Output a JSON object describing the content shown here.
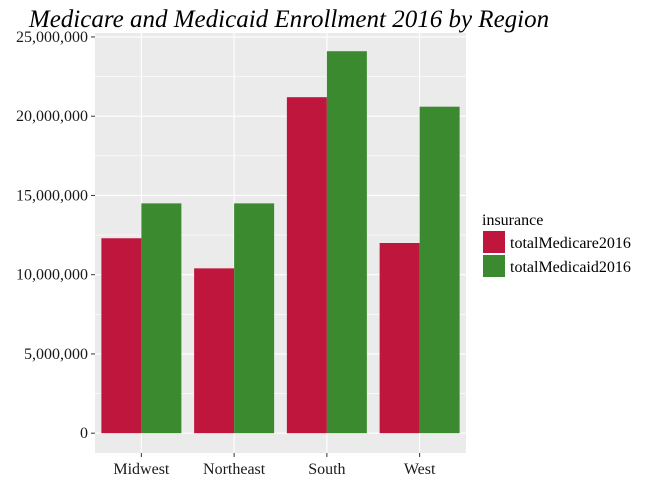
{
  "chart_data": {
    "type": "bar",
    "title": "Medicare and Medicaid Enrollment 2016 by Region",
    "xlabel": "",
    "ylabel": "",
    "categories": [
      "Midwest",
      "Northeast",
      "South",
      "West"
    ],
    "series": [
      {
        "name": "totalMedicare2016",
        "color": "#BE163D",
        "values": [
          12300000,
          10400000,
          21200000,
          12000000
        ]
      },
      {
        "name": "totalMedicaid2016",
        "color": "#3B8A2F",
        "values": [
          14500000,
          14500000,
          24100000,
          20600000
        ]
      }
    ],
    "ylim": [
      -1250000,
      25250000
    ],
    "yticks": [
      0,
      5000000,
      10000000,
      15000000,
      20000000,
      25000000
    ],
    "ytick_labels": [
      "0",
      "5,000,000",
      "10,000,000",
      "15,000,000",
      "20,000,000",
      "25,000,000"
    ],
    "grid": true,
    "panel_background": "#EBEBEB",
    "legend": {
      "title": "insurance",
      "position": "right"
    }
  }
}
